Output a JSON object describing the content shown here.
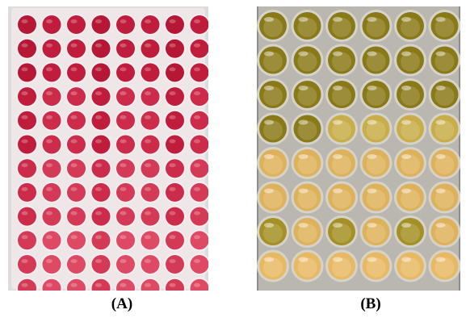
{
  "figure": {
    "panels": [
      {
        "id": "A",
        "caption": "(A)",
        "description_colors": {
          "background": "#dcdcdc",
          "plate_frame": "#efe6e8",
          "well_colors": [
            "#b51735",
            "#c01d3c",
            "#cc2c4a",
            "#d43a56",
            "#de4a63"
          ]
        },
        "grid": {
          "rows": 12,
          "cols": 8
        }
      },
      {
        "id": "B",
        "caption": "(B)",
        "description_colors": {
          "background": "#8e8d88",
          "plate_frame": "#b9b7b0",
          "well_colors": [
            "#8a7a17",
            "#a49024",
            "#c8ad48",
            "#deb25a",
            "#e8b963"
          ]
        },
        "grid": {
          "rows": 8,
          "cols": 6
        }
      }
    ]
  }
}
